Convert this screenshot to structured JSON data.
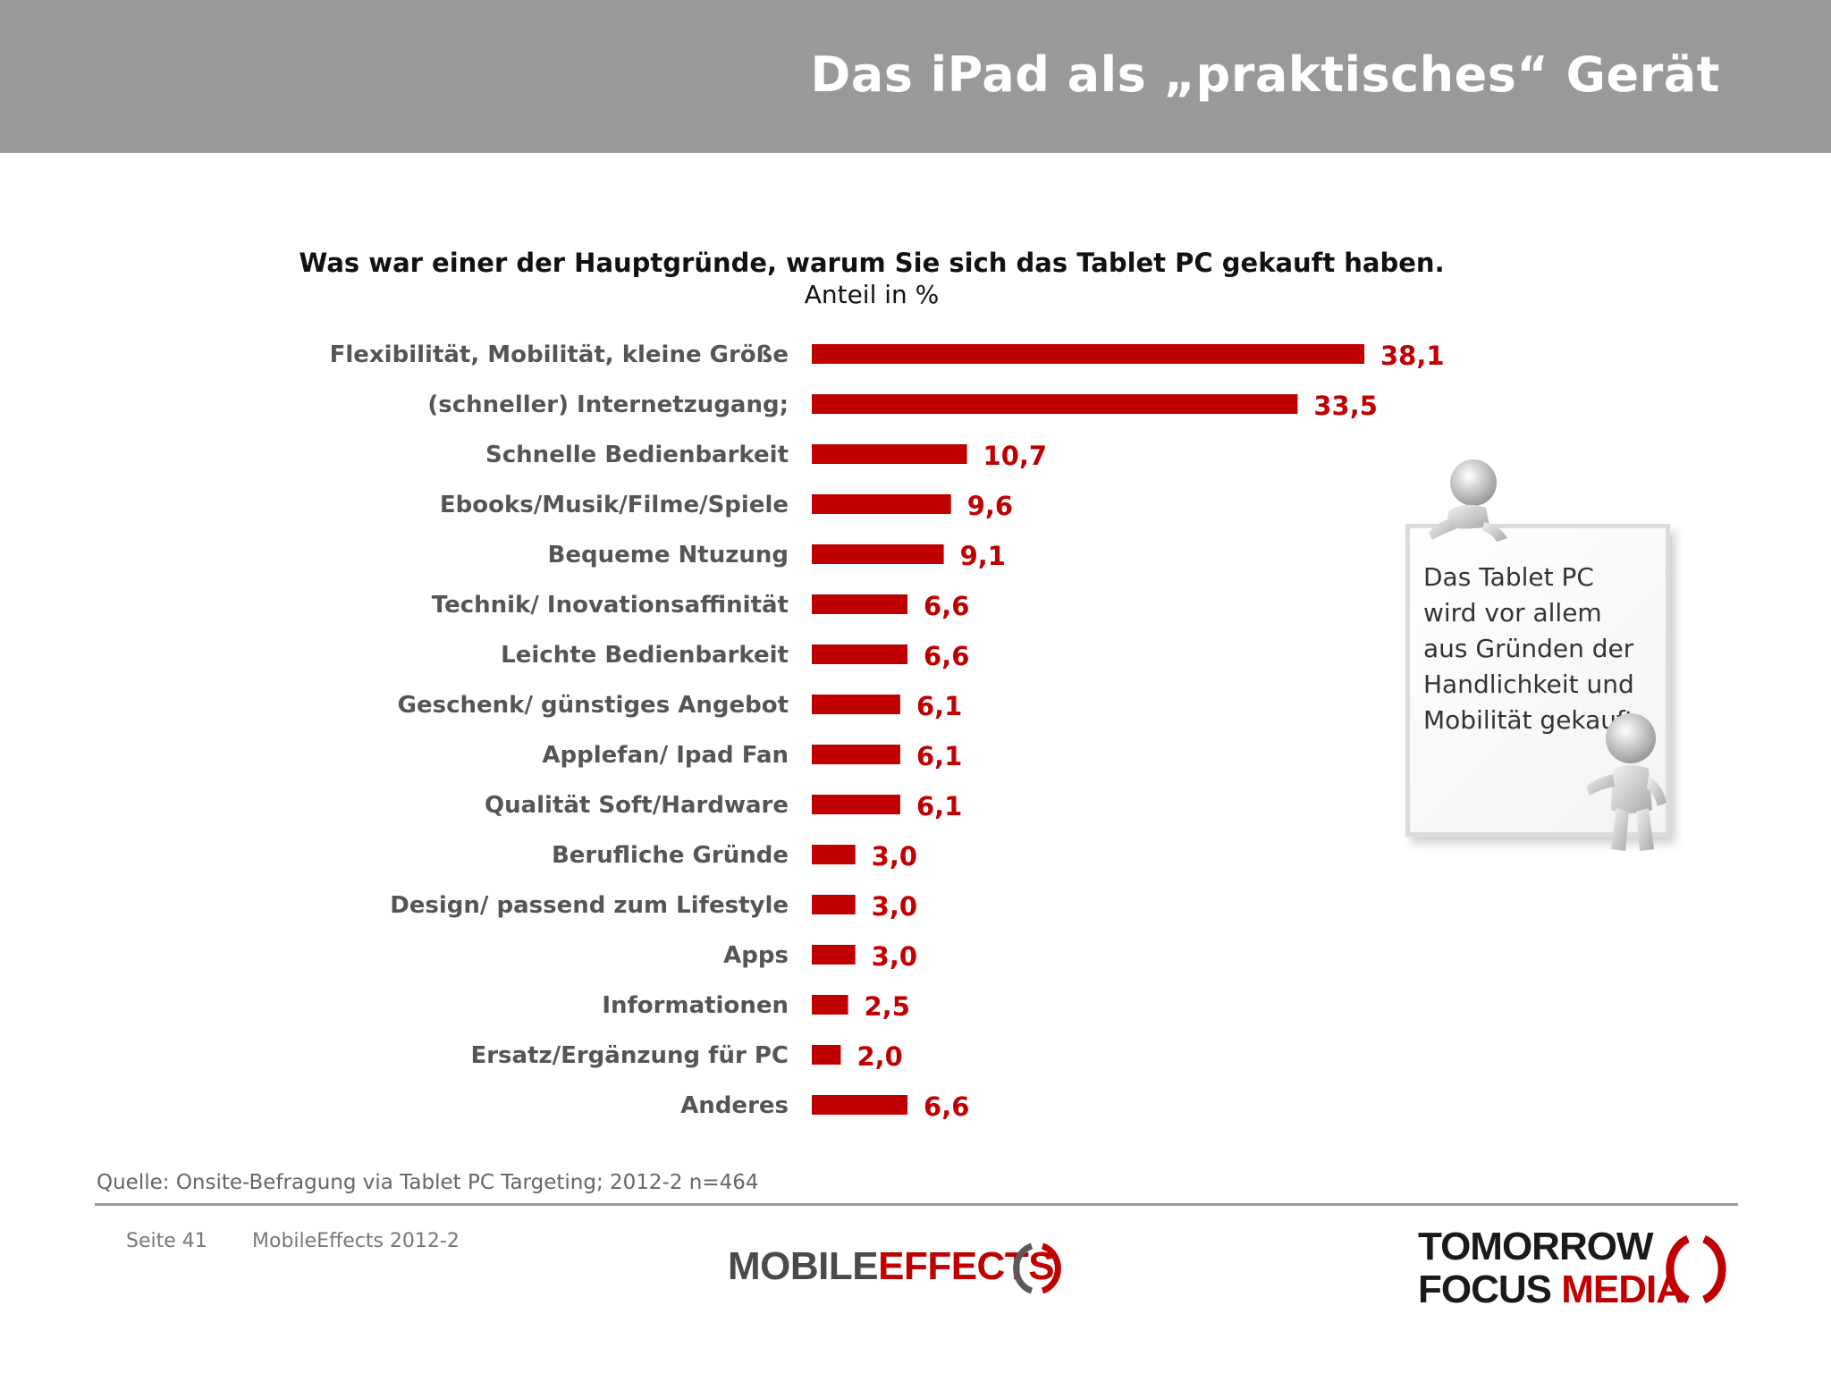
{
  "header": {
    "title": "Das iPad als „praktisches“ Gerät"
  },
  "chart_data": {
    "type": "bar",
    "orientation": "horizontal",
    "title": "Was war einer der Hauptgründe, warum Sie sich das Tablet PC gekauft haben.",
    "subtitle": "Anteil in %",
    "categories": [
      "Flexibilität, Mobilität, kleine Größe",
      "(schneller) Internetzugang;",
      "Schnelle Bedienbarkeit",
      "Ebooks/Musik/Filme/Spiele",
      "Bequeme Ntuzung",
      "Technik/ Inovationsaffinität",
      "Leichte Bedienbarkeit",
      "Geschenk/ günstiges Angebot",
      "Applefan/ Ipad Fan",
      "Qualität Soft/Hardware",
      "Berufliche Gründe",
      "Design/ passend zum Lifestyle",
      "Apps",
      "Informationen",
      "Ersatz/Ergänzung für PC",
      "Anderes"
    ],
    "values": [
      38.1,
      33.5,
      10.7,
      9.6,
      9.1,
      6.6,
      6.6,
      6.1,
      6.1,
      6.1,
      3.0,
      3.0,
      3.0,
      2.5,
      2.0,
      6.6
    ],
    "value_labels": [
      "38,1",
      "33,5",
      "10,7",
      "9,6",
      "9,1",
      "6,6",
      "6,6",
      "6,1",
      "6,1",
      "6,1",
      "3,0",
      "3,0",
      "3,0",
      "2,5",
      "2,0",
      "6,6"
    ],
    "xlim": [
      0,
      38.1
    ],
    "grid": false,
    "bar_color": "#c00000"
  },
  "note": {
    "text": "Das Tablet PC wird vor allem aus Gründen der Handlichkeit und Mobilität gekauft."
  },
  "footer": {
    "source": "Quelle: Onsite-Befragung via Tablet PC Targeting; 2012-2 n=464",
    "page": "Seite 41",
    "edition": "MobileEffects 2012-2"
  },
  "logos": {
    "mobile_effects": {
      "word1": "MOBILE",
      "word2": "EFFECTS"
    },
    "tfm": {
      "line1": "TOMORROW",
      "line2a": "FOCUS",
      "line2b": "MEDIA"
    }
  },
  "colors": {
    "header_bg": "#999999",
    "accent": "#c00000",
    "label_gray": "#555555"
  }
}
